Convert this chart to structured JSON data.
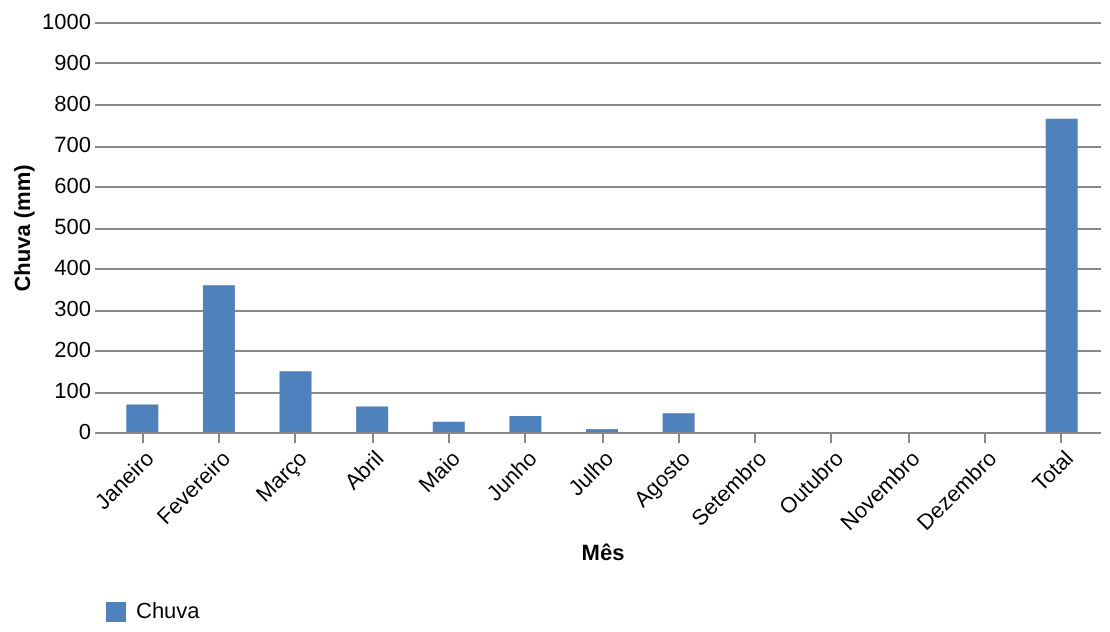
{
  "chart_data": {
    "type": "bar",
    "xlabel": "Mês",
    "ylabel": "Chuva (mm)",
    "categories": [
      "Janeiro",
      "Fevereiro",
      "Março",
      "Abril",
      "Maio",
      "Junho",
      "Julho",
      "Agosto",
      "Setembro",
      "Outubro",
      "Novembro",
      "Dezembro",
      "Total"
    ],
    "series": [
      {
        "name": "Chuva",
        "color": "#4f81bd",
        "values": [
          67,
          358,
          148,
          62,
          25,
          39,
          7,
          46,
          null,
          null,
          null,
          null,
          764
        ]
      }
    ],
    "ylim": [
      0,
      1000
    ],
    "yticks": [
      0,
      100,
      200,
      300,
      400,
      500,
      600,
      700,
      800,
      900,
      1000
    ],
    "grid": "y",
    "legend": "bottom"
  }
}
